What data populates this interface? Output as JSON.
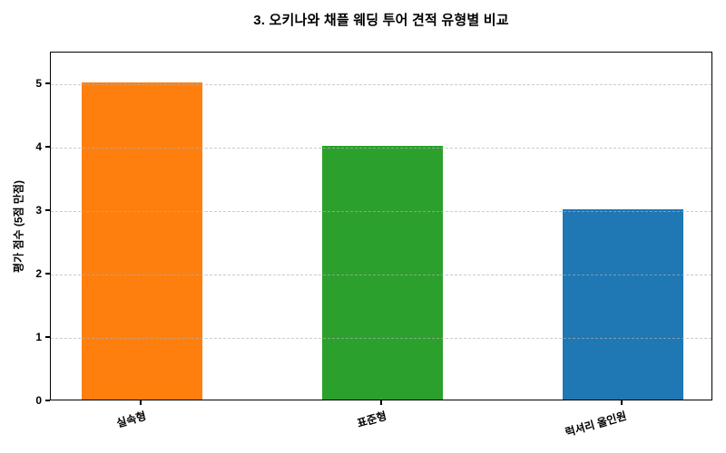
{
  "chart_data": {
    "type": "bar",
    "title": "3. 오키나와 채플 웨딩 투어 견적 유형별 비교",
    "categories": [
      "실속형",
      "표준형",
      "럭셔리 올인원"
    ],
    "values": [
      5,
      4,
      3
    ],
    "bar_colors": [
      "#ff7f0e",
      "#2ca02c",
      "#1f77b4"
    ],
    "xlabel": "",
    "ylabel": "평가 점수 (5점 만점)",
    "ylim": [
      0,
      5.5
    ],
    "yticks": [
      0,
      1,
      2,
      3,
      4,
      5
    ],
    "grid": {
      "horizontal": true,
      "style": "dashed",
      "color": "#b0b0b0",
      "drawn_above_bars": true
    },
    "legend_position": "none",
    "x_tick_label_rotation_deg": 16,
    "spine_box": true,
    "background_color": "#ffffff"
  }
}
